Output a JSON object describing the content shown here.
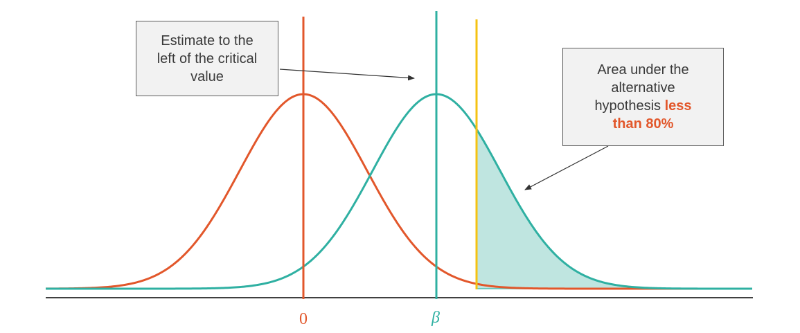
{
  "colors": {
    "null_curve": "#e2572b",
    "alt_curve": "#2fb0a2",
    "critical_line": "#f5c211",
    "shaded_area": "#bfe5e0",
    "axis": "#404040",
    "highlight_text": "#e2572b"
  },
  "axis_labels": {
    "null_mean": "0",
    "alt_mean": "β"
  },
  "callouts": {
    "left": {
      "lines": [
        "Estimate to the",
        "left of the critical",
        "value"
      ]
    },
    "right": {
      "line1": "Area under the",
      "line2": "alternative",
      "line3_plain": "hypothesis ",
      "line3_highlight": "less",
      "line4_highlight": "than 80%"
    }
  }
}
